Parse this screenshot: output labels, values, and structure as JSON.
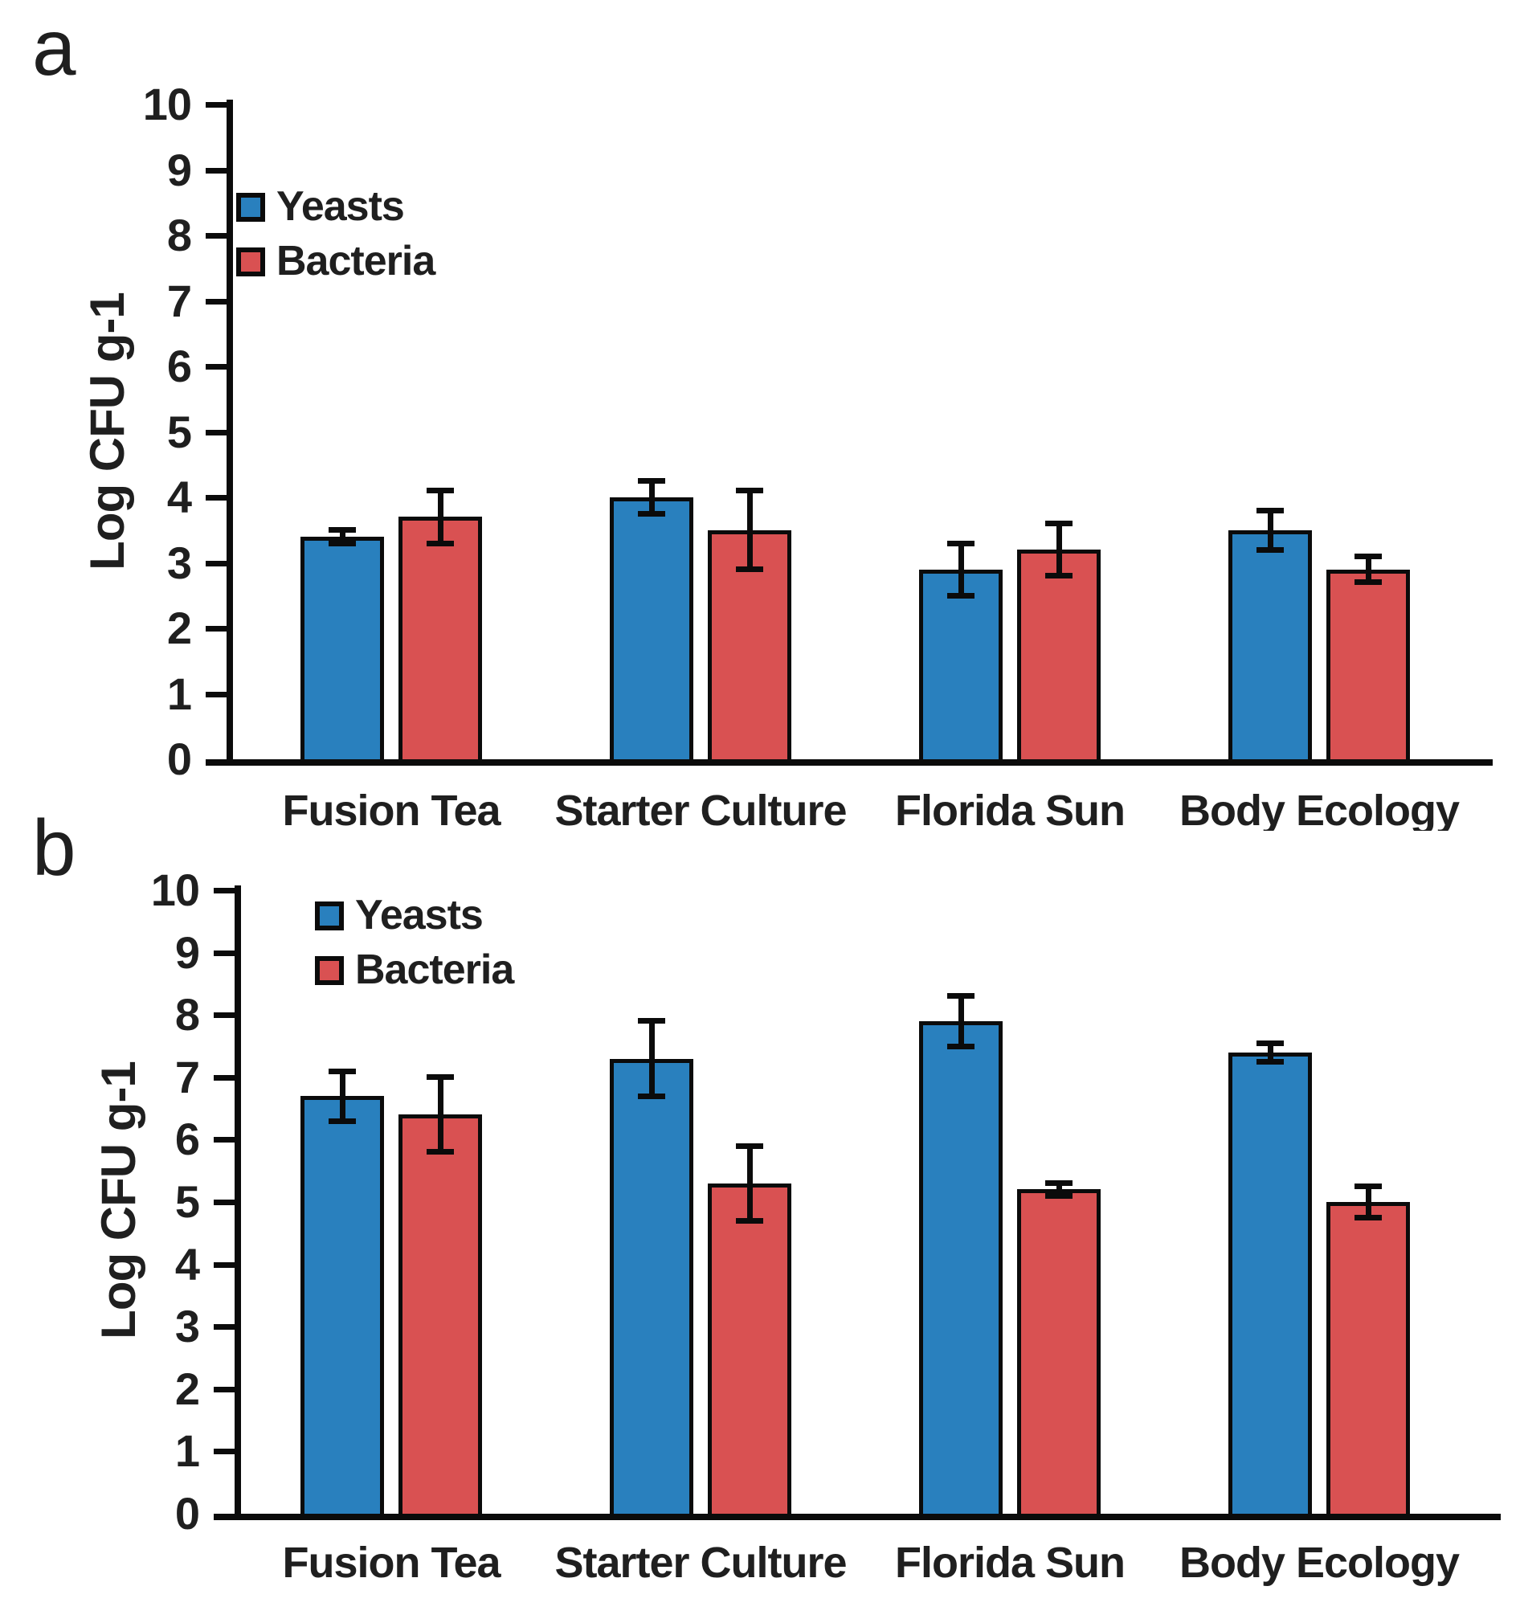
{
  "figure": {
    "background": "#ffffff",
    "text_color": "#1f1f1f",
    "axis_color": "#0b0b0b",
    "accent_blue": "#2980BE",
    "accent_red": "#D95152"
  },
  "chart_data": [
    {
      "type": "bar",
      "panel": "a",
      "title": "",
      "categories": [
        "Fusion Tea",
        "Starter Culture",
        "Florida Sun",
        "Body Ecology"
      ],
      "series": [
        {
          "name": "Yeasts",
          "color": "#2980BE",
          "values": [
            3.4,
            4.0,
            2.9,
            3.5
          ],
          "errors": [
            0.1,
            0.25,
            0.4,
            0.3
          ]
        },
        {
          "name": "Bacteria",
          "color": "#D95152",
          "values": [
            3.7,
            3.5,
            3.2,
            2.9
          ],
          "errors": [
            0.4,
            0.6,
            0.4,
            0.2
          ]
        }
      ],
      "xlabel": "",
      "ylabel": "Log CFU g-1",
      "ylim": [
        0,
        10
      ],
      "yticks": [
        10,
        9,
        8,
        7,
        6,
        5,
        4,
        3,
        2,
        1,
        0
      ],
      "legend_position": "upper-left",
      "grid": false,
      "error_bars": true
    },
    {
      "type": "bar",
      "panel": "b",
      "title": "",
      "categories": [
        "Fusion Tea",
        "Starter Culture",
        "Florida Sun",
        "Body Ecology"
      ],
      "series": [
        {
          "name": "Yeasts",
          "color": "#2980BE",
          "values": [
            6.7,
            7.3,
            7.9,
            7.4
          ],
          "errors": [
            0.4,
            0.6,
            0.4,
            0.15
          ]
        },
        {
          "name": "Bacteria",
          "color": "#D95152",
          "values": [
            6.4,
            5.3,
            5.2,
            5.0
          ],
          "errors": [
            0.6,
            0.6,
            0.1,
            0.25
          ]
        }
      ],
      "xlabel": "",
      "ylabel": "Log CFU g-1",
      "ylim": [
        0,
        10
      ],
      "yticks": [
        10,
        9,
        8,
        7,
        6,
        5,
        4,
        3,
        2,
        1,
        0
      ],
      "legend_position": "upper-left",
      "grid": false,
      "error_bars": true
    }
  ]
}
